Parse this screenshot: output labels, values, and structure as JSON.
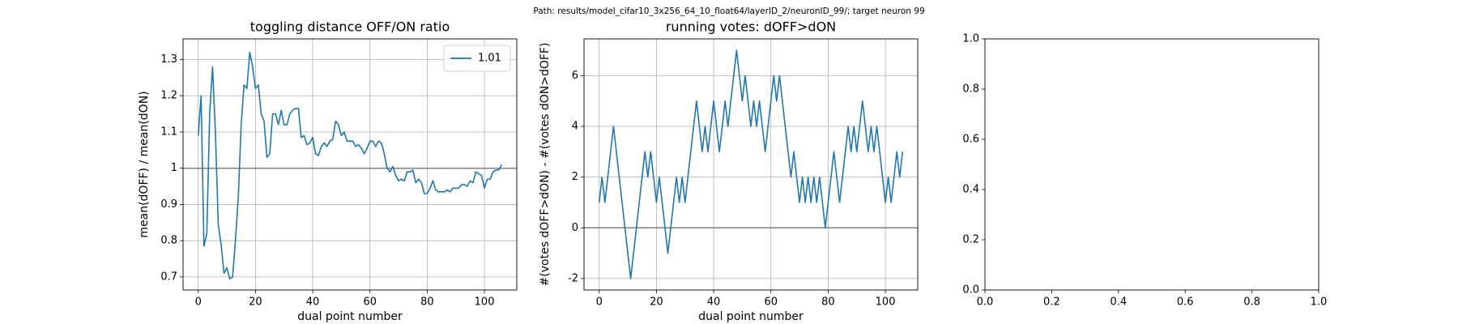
{
  "title": "Path: results/model_cifar10_3x256_64_10_float64/layerID_2/neuronID_99/; target neuron 99",
  "chart_data": [
    {
      "type": "line",
      "title": "toggling distance OFF/ON ratio",
      "x_label": "dual point number",
      "y_label": "mean(dOFF) / mean(dON)",
      "x": [
        0,
        1,
        2,
        3,
        4,
        5,
        6,
        7,
        8,
        9,
        10,
        11,
        12,
        13,
        14,
        15,
        16,
        17,
        18,
        19,
        20,
        21,
        22,
        23,
        24,
        25,
        26,
        27,
        28,
        29,
        30,
        31,
        32,
        33,
        34,
        35,
        36,
        37,
        38,
        39,
        40,
        41,
        42,
        43,
        44,
        45,
        46,
        47,
        48,
        49,
        50,
        51,
        52,
        53,
        54,
        55,
        56,
        57,
        58,
        59,
        60,
        61,
        62,
        63,
        64,
        65,
        66,
        67,
        68,
        69,
        70,
        71,
        72,
        73,
        74,
        75,
        76,
        77,
        78,
        79,
        80,
        81,
        82,
        83,
        84,
        85,
        86,
        87,
        88,
        89,
        90,
        91,
        92,
        93,
        94,
        95,
        96,
        97,
        98,
        99,
        100,
        101,
        102,
        103,
        104,
        105,
        106
      ],
      "series": [
        {
          "name": "1.01",
          "color": "#1f77b4",
          "values": [
            1.09,
            1.2,
            0.785,
            0.82,
            1.15,
            1.28,
            1.1,
            0.845,
            0.79,
            0.71,
            0.725,
            0.695,
            0.7,
            0.8,
            0.92,
            1.12,
            1.23,
            1.22,
            1.32,
            1.28,
            1.22,
            1.23,
            1.15,
            1.13,
            1.03,
            1.04,
            1.15,
            1.15,
            1.12,
            1.16,
            1.12,
            1.12,
            1.15,
            1.16,
            1.165,
            1.165,
            1.085,
            1.09,
            1.065,
            1.07,
            1.085,
            1.04,
            1.035,
            1.06,
            1.07,
            1.06,
            1.075,
            1.08,
            1.13,
            1.12,
            1.09,
            1.1,
            1.075,
            1.075,
            1.075,
            1.06,
            1.065,
            1.055,
            1.04,
            1.055,
            1.075,
            1.075,
            1.06,
            1.075,
            1.07,
            1.04,
            1.0,
            0.99,
            1.005,
            0.98,
            0.965,
            0.97,
            0.965,
            0.99,
            0.99,
            0.995,
            0.96,
            0.97,
            0.96,
            0.93,
            0.93,
            0.945,
            0.965,
            0.94,
            0.935,
            0.935,
            0.935,
            0.94,
            0.935,
            0.945,
            0.945,
            0.945,
            0.955,
            0.955,
            0.95,
            0.965,
            0.96,
            0.99,
            0.985,
            0.98,
            0.945,
            0.97,
            0.97,
            0.99,
            0.995,
            0.995,
            1.01
          ]
        }
      ],
      "hlines": [
        1.0
      ],
      "hline_color": "#808080",
      "xlim": [
        -5.3,
        111.3
      ],
      "ylim": [
        0.664,
        1.357
      ],
      "xticks": [
        0,
        20,
        40,
        60,
        80,
        100
      ],
      "yticks": [
        0.7,
        0.8,
        0.9,
        1.0,
        1.1,
        1.2,
        1.3
      ],
      "grid": true,
      "legend": "upper right"
    },
    {
      "type": "line",
      "title": "running votes: dOFF>dON",
      "x_label": "dual point number",
      "y_label": "#(votes dOFF>dON) - #(votes dON>dOFF)",
      "x": [
        0,
        1,
        2,
        3,
        4,
        5,
        6,
        7,
        8,
        9,
        10,
        11,
        12,
        13,
        14,
        15,
        16,
        17,
        18,
        19,
        20,
        21,
        22,
        23,
        24,
        25,
        26,
        27,
        28,
        29,
        30,
        31,
        32,
        33,
        34,
        35,
        36,
        37,
        38,
        39,
        40,
        41,
        42,
        43,
        44,
        45,
        46,
        47,
        48,
        49,
        50,
        51,
        52,
        53,
        54,
        55,
        56,
        57,
        58,
        59,
        60,
        61,
        62,
        63,
        64,
        65,
        66,
        67,
        68,
        69,
        70,
        71,
        72,
        73,
        74,
        75,
        76,
        77,
        78,
        79,
        80,
        81,
        82,
        83,
        84,
        85,
        86,
        87,
        88,
        89,
        90,
        91,
        92,
        93,
        94,
        95,
        96,
        97,
        98,
        99,
        100,
        101,
        102,
        103,
        104,
        105,
        106
      ],
      "series": [
        {
          "color": "#1f77b4",
          "values": [
            1,
            2,
            1,
            2,
            3,
            4,
            3,
            2,
            1,
            0,
            -1,
            -2,
            -1,
            0,
            1,
            2,
            3,
            2,
            3,
            2,
            1,
            2,
            1,
            0,
            -1,
            0,
            1,
            2,
            1,
            2,
            1,
            2,
            3,
            4,
            5,
            4,
            3,
            4,
            3,
            4,
            5,
            4,
            3,
            4,
            5,
            4,
            5,
            6,
            7,
            6,
            5,
            6,
            5,
            4,
            5,
            4,
            5,
            4,
            3,
            4,
            5,
            6,
            5,
            6,
            5,
            4,
            3,
            2,
            3,
            2,
            1,
            2,
            1,
            2,
            1,
            2,
            1,
            2,
            1,
            0,
            1,
            2,
            3,
            2,
            1,
            2,
            3,
            4,
            3,
            4,
            3,
            4,
            5,
            4,
            3,
            4,
            3,
            4,
            3,
            2,
            1,
            2,
            1,
            2,
            3,
            2,
            3
          ]
        }
      ],
      "hlines": [
        0
      ],
      "hline_color": "#808080",
      "xlim": [
        -5.3,
        111.3
      ],
      "ylim": [
        -2.45,
        7.45
      ],
      "xticks": [
        0,
        20,
        40,
        60,
        80,
        100
      ],
      "yticks": [
        -2,
        0,
        2,
        4,
        6
      ],
      "grid": true
    },
    {
      "type": "empty",
      "xlim": [
        0,
        1
      ],
      "ylim": [
        0,
        1
      ],
      "xticks": [
        {
          "value": 0,
          "label": "0.0"
        },
        0.2,
        0.4,
        0.6,
        0.8,
        {
          "value": 1,
          "label": "1.0"
        }
      ],
      "yticks": [
        {
          "value": 0,
          "label": "0.0"
        },
        0.2,
        0.4,
        0.6,
        0.8,
        {
          "value": 1,
          "label": "1.0"
        }
      ],
      "grid": false
    }
  ]
}
